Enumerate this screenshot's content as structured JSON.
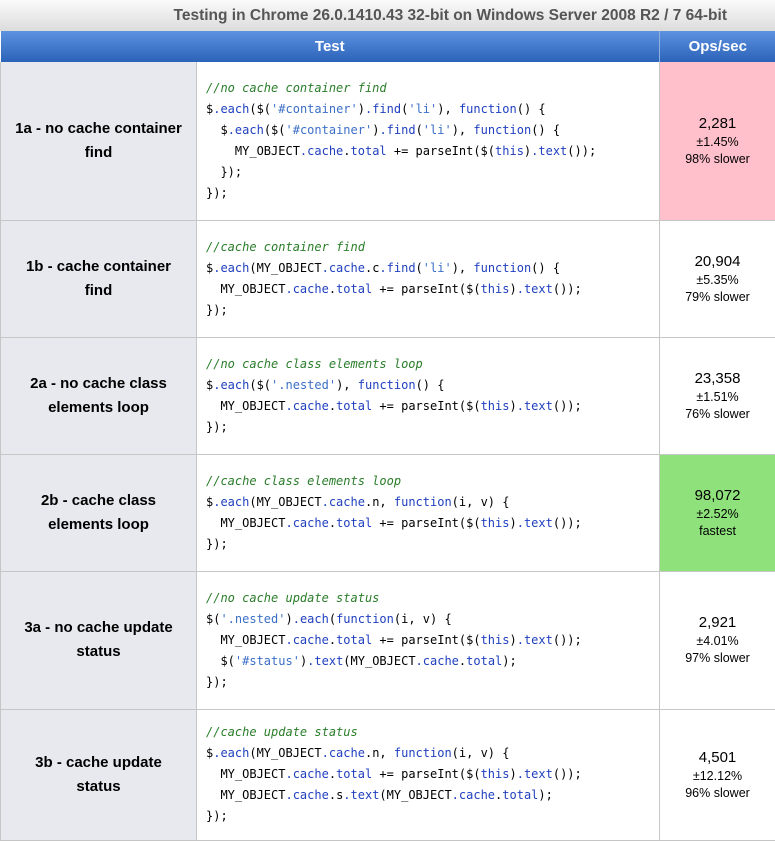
{
  "caption": "Testing in Chrome 26.0.1410.43 32-bit on Windows Server 2008 R2 / 7 64-bit",
  "headers": {
    "test": "Test",
    "ops": "Ops/sec"
  },
  "colors": {
    "slowest": "#ffc0cb",
    "fastest": "#8fe27b",
    "header": "#2b63b9"
  },
  "rows": [
    {
      "name": "1a - no cache container find",
      "code": [
        [
          [
            "cm",
            "//no cache container find"
          ]
        ],
        [
          [
            "",
            "$"
          ],
          [
            "kw",
            ".each"
          ],
          [
            "",
            "($("
          ],
          [
            "st",
            "'#container'"
          ],
          [
            "",
            ")"
          ],
          [
            "kw",
            ".find"
          ],
          [
            "",
            "("
          ],
          [
            "st",
            "'li'"
          ],
          [
            "",
            "), "
          ],
          [
            "kw",
            "function"
          ],
          [
            "",
            "() {"
          ]
        ],
        [
          [
            "",
            "  $"
          ],
          [
            "kw",
            ".each"
          ],
          [
            "",
            "($("
          ],
          [
            "st",
            "'#container'"
          ],
          [
            "",
            ")"
          ],
          [
            "kw",
            ".find"
          ],
          [
            "",
            "("
          ],
          [
            "st",
            "'li'"
          ],
          [
            "",
            "), "
          ],
          [
            "kw",
            "function"
          ],
          [
            "",
            "() {"
          ]
        ],
        [
          [
            "",
            "    MY_OBJECT"
          ],
          [
            "kw",
            ".cache"
          ],
          [
            "",
            "."
          ],
          [
            "kw",
            "total"
          ],
          [
            "",
            " += parseInt($("
          ],
          [
            "kw",
            "this"
          ],
          [
            "",
            ")"
          ],
          [
            "kw",
            ".text"
          ],
          [
            "",
            "());"
          ]
        ],
        [
          [
            "",
            "  });"
          ]
        ],
        [
          [
            "",
            "});"
          ]
        ]
      ],
      "ops": "2,281",
      "error": "±1.45%",
      "rank": "98% slower",
      "status": "slowest"
    },
    {
      "name": "1b - cache container find",
      "code": [
        [
          [
            "cm",
            "//cache container find"
          ]
        ],
        [
          [
            "",
            "$"
          ],
          [
            "kw",
            ".each"
          ],
          [
            "",
            "(MY_OBJECT"
          ],
          [
            "kw",
            ".cache"
          ],
          [
            "",
            ".c"
          ],
          [
            "kw",
            ".find"
          ],
          [
            "",
            "("
          ],
          [
            "st",
            "'li'"
          ],
          [
            "",
            "), "
          ],
          [
            "kw",
            "function"
          ],
          [
            "",
            "() {"
          ]
        ],
        [
          [
            "",
            "  MY_OBJECT"
          ],
          [
            "kw",
            ".cache"
          ],
          [
            "",
            "."
          ],
          [
            "kw",
            "total"
          ],
          [
            "",
            " += parseInt($("
          ],
          [
            "kw",
            "this"
          ],
          [
            "",
            ")"
          ],
          [
            "kw",
            ".text"
          ],
          [
            "",
            "());"
          ]
        ],
        [
          [
            "",
            "});"
          ]
        ]
      ],
      "ops": "20,904",
      "error": "±5.35%",
      "rank": "79% slower",
      "status": ""
    },
    {
      "name": "2a - no cache class elements loop",
      "code": [
        [
          [
            "cm",
            "//no cache class elements loop"
          ]
        ],
        [
          [
            "",
            "$"
          ],
          [
            "kw",
            ".each"
          ],
          [
            "",
            "($("
          ],
          [
            "st",
            "'.nested'"
          ],
          [
            "",
            "), "
          ],
          [
            "kw",
            "function"
          ],
          [
            "",
            "() {"
          ]
        ],
        [
          [
            "",
            "  MY_OBJECT"
          ],
          [
            "kw",
            ".cache"
          ],
          [
            "",
            "."
          ],
          [
            "kw",
            "total"
          ],
          [
            "",
            " += parseInt($("
          ],
          [
            "kw",
            "this"
          ],
          [
            "",
            ")"
          ],
          [
            "kw",
            ".text"
          ],
          [
            "",
            "());"
          ]
        ],
        [
          [
            "",
            "});"
          ]
        ]
      ],
      "ops": "23,358",
      "error": "±1.51%",
      "rank": "76% slower",
      "status": ""
    },
    {
      "name": "2b - cache class elements loop",
      "code": [
        [
          [
            "cm",
            "//cache class elements loop"
          ]
        ],
        [
          [
            "",
            "$"
          ],
          [
            "kw",
            ".each"
          ],
          [
            "",
            "(MY_OBJECT"
          ],
          [
            "kw",
            ".cache"
          ],
          [
            "",
            ".n, "
          ],
          [
            "kw",
            "function"
          ],
          [
            "",
            "(i, v) {"
          ]
        ],
        [
          [
            "",
            "  MY_OBJECT"
          ],
          [
            "kw",
            ".cache"
          ],
          [
            "",
            "."
          ],
          [
            "kw",
            "total"
          ],
          [
            "",
            " += parseInt($("
          ],
          [
            "kw",
            "this"
          ],
          [
            "",
            ")"
          ],
          [
            "kw",
            ".text"
          ],
          [
            "",
            "());"
          ]
        ],
        [
          [
            "",
            "});"
          ]
        ]
      ],
      "ops": "98,072",
      "error": "±2.52%",
      "rank": "fastest",
      "status": "fastest"
    },
    {
      "name": "3a - no cache update status",
      "code": [
        [
          [
            "cm",
            "//no cache update status"
          ]
        ],
        [
          [
            "",
            "$("
          ],
          [
            "st",
            "'.nested'"
          ],
          [
            "",
            ")"
          ],
          [
            "kw",
            ".each"
          ],
          [
            "",
            "("
          ],
          [
            "kw",
            "function"
          ],
          [
            "",
            "(i, v) {"
          ]
        ],
        [
          [
            "",
            "  MY_OBJECT"
          ],
          [
            "kw",
            ".cache"
          ],
          [
            "",
            "."
          ],
          [
            "kw",
            "total"
          ],
          [
            "",
            " += parseInt($("
          ],
          [
            "kw",
            "this"
          ],
          [
            "",
            ")"
          ],
          [
            "kw",
            ".text"
          ],
          [
            "",
            "());"
          ]
        ],
        [
          [
            "",
            "  $("
          ],
          [
            "st",
            "'#status'"
          ],
          [
            "",
            ")"
          ],
          [
            "kw",
            ".text"
          ],
          [
            "",
            "(MY_OBJECT"
          ],
          [
            "kw",
            ".cache"
          ],
          [
            "",
            "."
          ],
          [
            "kw",
            "total"
          ],
          [
            "",
            ");"
          ]
        ],
        [
          [
            "",
            "});"
          ]
        ]
      ],
      "ops": "2,921",
      "error": "±4.01%",
      "rank": "97% slower",
      "status": ""
    },
    {
      "name": "3b - cache update status",
      "code": [
        [
          [
            "cm",
            "//cache update status"
          ]
        ],
        [
          [
            "",
            "$"
          ],
          [
            "kw",
            ".each"
          ],
          [
            "",
            "(MY_OBJECT"
          ],
          [
            "kw",
            ".cache"
          ],
          [
            "",
            ".n, "
          ],
          [
            "kw",
            "function"
          ],
          [
            "",
            "(i, v) {"
          ]
        ],
        [
          [
            "",
            "  MY_OBJECT"
          ],
          [
            "kw",
            ".cache"
          ],
          [
            "",
            "."
          ],
          [
            "kw",
            "total"
          ],
          [
            "",
            " += parseInt($("
          ],
          [
            "kw",
            "this"
          ],
          [
            "",
            ")"
          ],
          [
            "kw",
            ".text"
          ],
          [
            "",
            "());"
          ]
        ],
        [
          [
            "",
            "  MY_OBJECT"
          ],
          [
            "kw",
            ".cache"
          ],
          [
            "",
            ".s"
          ],
          [
            "kw",
            ".text"
          ],
          [
            "",
            "(MY_OBJECT"
          ],
          [
            "kw",
            ".cache"
          ],
          [
            "",
            "."
          ],
          [
            "kw",
            "total"
          ],
          [
            "",
            ");"
          ]
        ],
        [
          [
            "",
            "});"
          ]
        ]
      ],
      "ops": "4,501",
      "error": "±12.12%",
      "rank": "96% slower",
      "status": ""
    }
  ]
}
